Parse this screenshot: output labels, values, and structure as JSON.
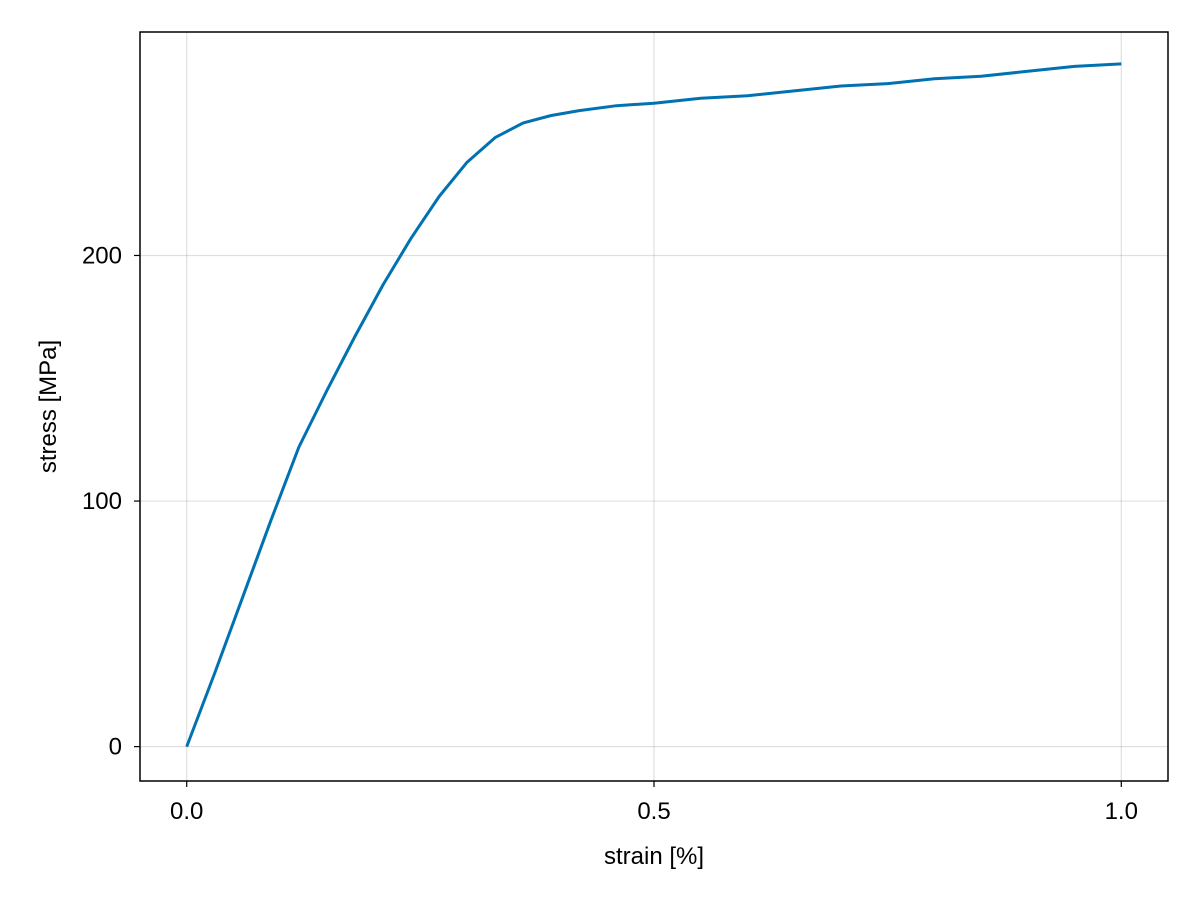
{
  "chart_data": {
    "type": "line",
    "title": "",
    "xlabel": "strain [%]",
    "ylabel": "stress [MPa]",
    "xlim": [
      -0.05,
      1.05
    ],
    "ylim": [
      -14,
      291
    ],
    "x_ticks": [
      0.0,
      0.5,
      1.0
    ],
    "x_tick_labels": [
      "0.0",
      "0.5",
      "1.0"
    ],
    "y_ticks": [
      0,
      100,
      200
    ],
    "y_tick_labels": [
      "0",
      "100",
      "200"
    ],
    "grid": true,
    "line_color": "#0072b2",
    "series": [
      {
        "x": [
          0.0,
          0.03,
          0.06,
          0.09,
          0.12,
          0.15,
          0.18,
          0.21,
          0.24,
          0.27,
          0.3,
          0.33,
          0.36,
          0.39,
          0.42,
          0.46,
          0.5,
          0.55,
          0.6,
          0.65,
          0.7,
          0.75,
          0.8,
          0.85,
          0.9,
          0.95,
          1.0
        ],
        "y": [
          0,
          30,
          61,
          92,
          122,
          145,
          167,
          188,
          207,
          224,
          238,
          248,
          254,
          257,
          259,
          261,
          262,
          264,
          265,
          267,
          269,
          270,
          272,
          273,
          275,
          277,
          278
        ]
      }
    ]
  }
}
